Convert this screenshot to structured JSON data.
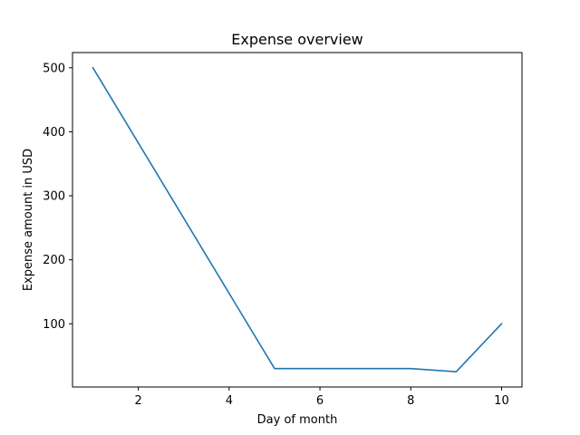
{
  "chart_data": {
    "type": "line",
    "title": "Expense overview",
    "xlabel": "Day of month",
    "ylabel": "Expense amount in USD",
    "x": [
      1,
      5,
      8,
      9,
      10
    ],
    "series": [
      {
        "values": [
          500,
          30,
          30,
          25,
          100
        ],
        "color": "#1f77b4"
      }
    ],
    "xlim": [
      0.55,
      10.45
    ],
    "ylim": [
      1.25,
      523.75
    ],
    "xticks": [
      2,
      4,
      6,
      8,
      10
    ],
    "yticks": [
      100,
      200,
      300,
      400,
      500
    ],
    "grid": false,
    "legend": "none"
  }
}
